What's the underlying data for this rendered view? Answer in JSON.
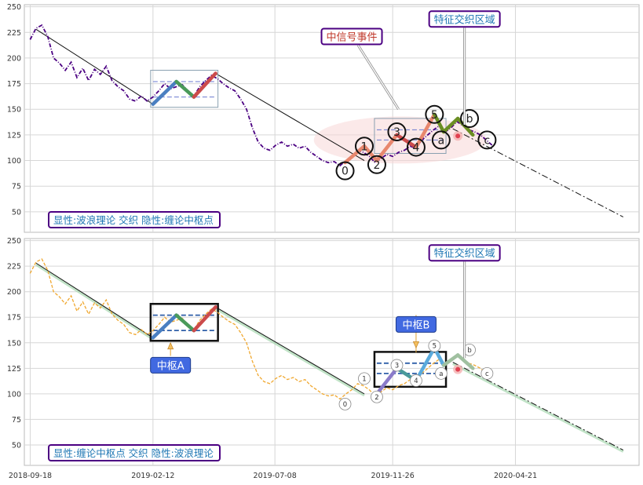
{
  "chart_data": [
    {
      "type": "line",
      "panel": "top",
      "ylim": [
        30,
        252
      ],
      "xlim": [
        "2018-09-11",
        "2020-09-16"
      ],
      "yticks": [
        50,
        75,
        100,
        125,
        150,
        175,
        200,
        225,
        250
      ],
      "grid": true,
      "legend_box": "显性:波浪理论 交织 隐性:缠论中枢点",
      "legend_color": "#1f77b4",
      "price_color": "#4b0082",
      "callouts": [
        {
          "id": "signal",
          "text": "中信号事件",
          "color": "#c0392b",
          "at": [
            "2019-10-08",
            221
          ],
          "arrow_to": [
            "2019-12-03",
            150
          ]
        },
        {
          "id": "zone",
          "text": "特征交织区域",
          "color": "#1f77b4",
          "at": [
            "2020-02-20",
            238
          ],
          "arrow_to": [
            "2020-02-20",
            135
          ]
        }
      ],
      "wave_labels": [
        {
          "text": "0",
          "x": "2019-09-30",
          "y": 90
        },
        {
          "text": "1",
          "x": "2019-10-23",
          "y": 114
        },
        {
          "text": "2",
          "x": "2019-11-07",
          "y": 96
        },
        {
          "text": "3",
          "x": "2019-12-01",
          "y": 128
        },
        {
          "text": "4",
          "x": "2019-12-24",
          "y": 113
        },
        {
          "text": "5",
          "x": "2020-01-15",
          "y": 145
        },
        {
          "text": "a",
          "x": "2020-01-23",
          "y": 120
        },
        {
          "text": "b",
          "x": "2020-02-26",
          "y": 141
        },
        {
          "text": "c",
          "x": "2020-03-18",
          "y": 120
        }
      ]
    },
    {
      "type": "line",
      "panel": "bottom",
      "ylim": [
        30,
        252
      ],
      "xlim": [
        "2018-09-11",
        "2020-09-16"
      ],
      "yticks": [
        50,
        75,
        100,
        125,
        150,
        175,
        200,
        225,
        250
      ],
      "xticks": [
        "2018-09-18",
        "2019-02-12",
        "2019-07-08",
        "2019-11-26",
        "2020-04-21"
      ],
      "grid": true,
      "legend_box": "显性:缠论中枢点 交织 隐性:波浪理论",
      "legend_color": "#1f77b4",
      "price_color": "#f0a830",
      "callouts": [
        {
          "id": "zone",
          "text": "特征交织区域",
          "color": "#1f77b4",
          "at": [
            "2020-02-20",
            238
          ],
          "arrow_to": [
            "2020-02-20",
            135
          ]
        },
        {
          "id": "hubA",
          "text": "中枢A",
          "color": "#ffffff",
          "bg": "#4169e1",
          "at": [
            "2019-03-05",
            128
          ],
          "arrow_to": [
            "2019-03-05",
            150
          ]
        },
        {
          "id": "hubB",
          "text": "中枢B",
          "color": "#ffffff",
          "bg": "#4169e1",
          "at": [
            "2019-12-24",
            168
          ],
          "arrow_to": [
            "2019-12-24",
            145
          ]
        }
      ],
      "wave_labels": [
        {
          "text": "0",
          "x": "2019-09-30",
          "y": 90
        },
        {
          "text": "1",
          "x": "2019-10-23",
          "y": 115
        },
        {
          "text": "2",
          "x": "2019-11-07",
          "y": 97
        },
        {
          "text": "3",
          "x": "2019-12-01",
          "y": 128
        },
        {
          "text": "4",
          "x": "2019-12-24",
          "y": 113
        },
        {
          "text": "5",
          "x": "2020-01-15",
          "y": 147
        },
        {
          "text": "a",
          "x": "2020-01-23",
          "y": 120
        },
        {
          "text": "b",
          "x": "2020-02-26",
          "y": 143
        },
        {
          "text": "c",
          "x": "2020-03-18",
          "y": 120
        }
      ]
    }
  ],
  "trend_lines": [
    {
      "x": [
        "2018-09-25",
        "2019-02-12"
      ],
      "y": [
        228,
        155
      ]
    },
    {
      "x": [
        "2019-04-28",
        "2019-10-23"
      ],
      "y": [
        185,
        100
      ]
    },
    {
      "x": [
        "2020-02-06",
        "2020-08-28"
      ],
      "y": [
        131,
        45
      ]
    }
  ],
  "wave_segments": {
    "left": [
      {
        "x": [
          "2019-02-12",
          "2019-03-12"
        ],
        "y": [
          155,
          177
        ],
        "color": "#4a7fc1"
      },
      {
        "x": [
          "2019-03-12",
          "2019-04-02"
        ],
        "y": [
          177,
          162
        ],
        "color": "#4a9a5a"
      },
      {
        "x": [
          "2019-04-02",
          "2019-04-28"
        ],
        "y": [
          162,
          185
        ],
        "color": "#cc4b4b"
      }
    ],
    "right_top": [
      {
        "x": [
          "2019-09-30",
          "2019-10-23"
        ],
        "y": [
          98,
          114
        ],
        "color": "#e8876e"
      },
      {
        "x": [
          "2019-10-23",
          "2019-11-07"
        ],
        "y": [
          114,
          100
        ],
        "color": "#e8876e"
      },
      {
        "x": [
          "2019-11-07",
          "2019-12-01"
        ],
        "y": [
          100,
          125
        ],
        "color": "#e8876e"
      },
      {
        "x": [
          "2019-12-01",
          "2019-12-24"
        ],
        "y": [
          125,
          113
        ],
        "color": "#cc4b4b"
      },
      {
        "x": [
          "2019-12-24",
          "2020-01-15"
        ],
        "y": [
          113,
          145
        ],
        "color": "#e8876e"
      },
      {
        "x": [
          "2020-01-15",
          "2020-01-26"
        ],
        "y": [
          145,
          128
        ],
        "color": "#6b8e23"
      },
      {
        "x": [
          "2020-01-26",
          "2020-02-12"
        ],
        "y": [
          128,
          141
        ],
        "color": "#6b8e23"
      },
      {
        "x": [
          "2020-02-12",
          "2020-03-01"
        ],
        "y": [
          141,
          125
        ],
        "color": "#6b8e23"
      }
    ],
    "right_bottom": [
      {
        "x": [
          "2019-11-07",
          "2019-12-01"
        ],
        "y": [
          100,
          125
        ],
        "color": "#8b7bc9"
      },
      {
        "x": [
          "2019-12-01",
          "2019-12-24"
        ],
        "y": [
          125,
          113
        ],
        "color": "#4a9a9a"
      },
      {
        "x": [
          "2019-12-24",
          "2020-01-15"
        ],
        "y": [
          113,
          145
        ],
        "color": "#5aaadc"
      },
      {
        "x": [
          "2020-01-15",
          "2020-01-26"
        ],
        "y": [
          145,
          128
        ],
        "color": "#5aaadc"
      },
      {
        "x": [
          "2020-01-26",
          "2020-02-12"
        ],
        "y": [
          128,
          138
        ],
        "color": "#a0c0a0"
      },
      {
        "x": [
          "2020-02-12",
          "2020-03-01"
        ],
        "y": [
          138,
          125
        ],
        "color": "#a0c0a0"
      }
    ]
  },
  "hub_boxes": {
    "left": {
      "x": [
        "2019-02-12",
        "2019-04-28"
      ],
      "y": [
        155,
        185
      ],
      "inner": [
        162,
        177
      ]
    },
    "right": {
      "x": [
        "2019-11-07",
        "2020-01-26"
      ],
      "y": [
        110,
        138
      ],
      "inner": [
        120,
        130
      ]
    }
  },
  "price_series": {
    "x": [
      "2018-09-18",
      "2018-09-25",
      "2018-10-02",
      "2018-10-09",
      "2018-10-16",
      "2018-10-23",
      "2018-10-30",
      "2018-11-06",
      "2018-11-13",
      "2018-11-20",
      "2018-11-27",
      "2018-12-04",
      "2018-12-11",
      "2018-12-18",
      "2018-12-25",
      "2019-01-01",
      "2019-01-08",
      "2019-01-15",
      "2019-01-22",
      "2019-01-29",
      "2019-02-05",
      "2019-02-12",
      "2019-02-19",
      "2019-02-26",
      "2019-03-05",
      "2019-03-12",
      "2019-03-19",
      "2019-03-26",
      "2019-04-02",
      "2019-04-09",
      "2019-04-16",
      "2019-04-23",
      "2019-04-30",
      "2019-05-07",
      "2019-05-14",
      "2019-05-21",
      "2019-05-28",
      "2019-06-04",
      "2019-06-11",
      "2019-06-18",
      "2019-06-25",
      "2019-07-02",
      "2019-07-09",
      "2019-07-16",
      "2019-07-23",
      "2019-07-30",
      "2019-08-06",
      "2019-08-13",
      "2019-08-20",
      "2019-08-27",
      "2019-09-03",
      "2019-09-10",
      "2019-09-17",
      "2019-09-24",
      "2019-10-01",
      "2019-10-08",
      "2019-10-15",
      "2019-10-22",
      "2019-10-29",
      "2019-11-05",
      "2019-11-12",
      "2019-11-19",
      "2019-11-26",
      "2019-12-03",
      "2019-12-10",
      "2019-12-17",
      "2019-12-24",
      "2019-12-31",
      "2020-01-07",
      "2020-01-14",
      "2020-01-21",
      "2020-01-28",
      "2020-02-04",
      "2020-02-11",
      "2020-02-18",
      "2020-02-25",
      "2020-03-03",
      "2020-03-10",
      "2020-03-17",
      "2020-03-24"
    ],
    "y": [
      218,
      229,
      232,
      221,
      200,
      195,
      188,
      196,
      181,
      190,
      178,
      189,
      184,
      192,
      178,
      172,
      168,
      160,
      158,
      163,
      158,
      162,
      168,
      175,
      170,
      172,
      174,
      168,
      163,
      172,
      178,
      183,
      180,
      175,
      171,
      168,
      160,
      150,
      132,
      118,
      112,
      110,
      115,
      118,
      114,
      116,
      112,
      114,
      108,
      104,
      100,
      98,
      99,
      95,
      100,
      104,
      110,
      108,
      104,
      98,
      102,
      106,
      104,
      108,
      110,
      114,
      112,
      120,
      125,
      130,
      134,
      128,
      132,
      138,
      134,
      130,
      128,
      125,
      120,
      115
    ]
  }
}
